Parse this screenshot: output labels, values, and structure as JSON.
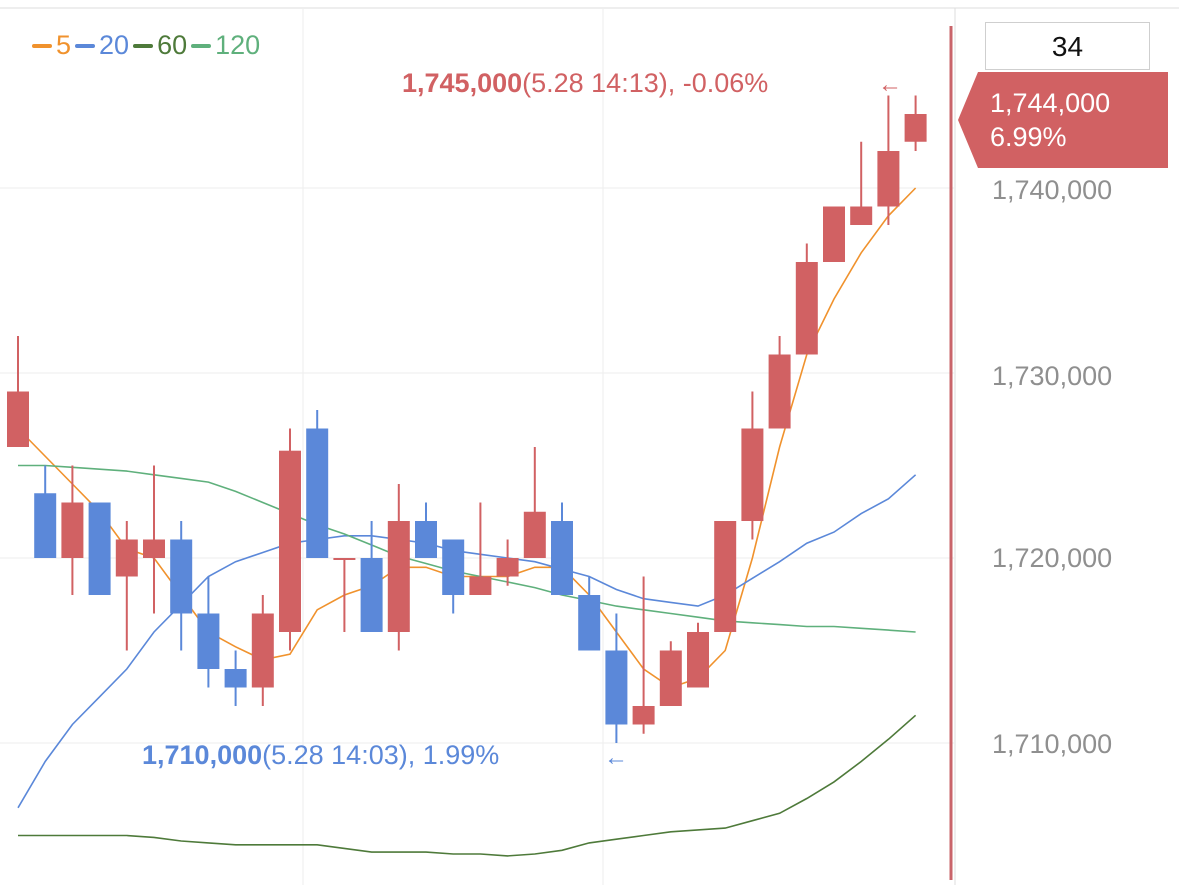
{
  "legend": [
    {
      "label": "5",
      "color": "#f0922d"
    },
    {
      "label": "20",
      "color": "#5b88d9"
    },
    {
      "label": "60",
      "color": "#4e7a3a"
    },
    {
      "label": "120",
      "color": "#5fb07c"
    }
  ],
  "top_box": "34",
  "current_price": {
    "price": "1,744,000",
    "change": "6.99%",
    "color": "#d16163"
  },
  "high_annotation": {
    "value": "1,745,000",
    "detail": "(5.28 14:13), -0.06%",
    "arrow": "←"
  },
  "low_annotation": {
    "value": "1,710,000",
    "detail": "(5.28 14:03), 1.99%",
    "arrow": "←"
  },
  "y_ticks": [
    "1,740,000",
    "1,730,000",
    "1,720,000",
    "1,710,000"
  ],
  "colors": {
    "up": "#d16163",
    "down": "#5b88d9",
    "grid": "#eeeeee",
    "axis_line": "#c9646a"
  },
  "chart_data": {
    "type": "candlestick",
    "y_ticks": [
      1740000,
      1730000,
      1720000,
      1710000
    ],
    "candles": [
      {
        "o": 1726000,
        "h": 1732000,
        "l": 1726000,
        "c": 1729000
      },
      {
        "o": 1723500,
        "h": 1725000,
        "l": 1720000,
        "c": 1720000
      },
      {
        "o": 1720000,
        "h": 1725000,
        "l": 1718000,
        "c": 1723000
      },
      {
        "o": 1723000,
        "h": 1723000,
        "l": 1718000,
        "c": 1718000
      },
      {
        "o": 1719000,
        "h": 1722000,
        "l": 1715000,
        "c": 1721000
      },
      {
        "o": 1720000,
        "h": 1725000,
        "l": 1717000,
        "c": 1721000
      },
      {
        "o": 1721000,
        "h": 1722000,
        "l": 1715000,
        "c": 1717000
      },
      {
        "o": 1717000,
        "h": 1719000,
        "l": 1713000,
        "c": 1714000
      },
      {
        "o": 1714000,
        "h": 1715000,
        "l": 1712000,
        "c": 1713000
      },
      {
        "o": 1713000,
        "h": 1718000,
        "l": 1712000,
        "c": 1717000
      },
      {
        "o": 1716000,
        "h": 1727000,
        "l": 1715000,
        "c": 1725800
      },
      {
        "o": 1727000,
        "h": 1728000,
        "l": 1720000,
        "c": 1720000
      },
      {
        "o": 1720000,
        "h": 1720000,
        "l": 1716000,
        "c": 1720000
      },
      {
        "o": 1720000,
        "h": 1722000,
        "l": 1716000,
        "c": 1716000
      },
      {
        "o": 1716000,
        "h": 1724000,
        "l": 1715000,
        "c": 1722000
      },
      {
        "o": 1722000,
        "h": 1723000,
        "l": 1720000,
        "c": 1720000
      },
      {
        "o": 1721000,
        "h": 1721000,
        "l": 1717000,
        "c": 1718000
      },
      {
        "o": 1718000,
        "h": 1723000,
        "l": 1718000,
        "c": 1719000
      },
      {
        "o": 1719000,
        "h": 1721000,
        "l": 1718500,
        "c": 1720000
      },
      {
        "o": 1720000,
        "h": 1726000,
        "l": 1720000,
        "c": 1722500
      },
      {
        "o": 1722000,
        "h": 1723000,
        "l": 1718000,
        "c": 1718000
      },
      {
        "o": 1718000,
        "h": 1719000,
        "l": 1715000,
        "c": 1715000
      },
      {
        "o": 1715000,
        "h": 1717000,
        "l": 1710000,
        "c": 1711000
      },
      {
        "o": 1711000,
        "h": 1719000,
        "l": 1710500,
        "c": 1712000
      },
      {
        "o": 1712000,
        "h": 1715500,
        "l": 1712000,
        "c": 1715000
      },
      {
        "o": 1713000,
        "h": 1716500,
        "l": 1713000,
        "c": 1716000
      },
      {
        "o": 1716000,
        "h": 1722000,
        "l": 1716000,
        "c": 1722000
      },
      {
        "o": 1722000,
        "h": 1729000,
        "l": 1721000,
        "c": 1727000
      },
      {
        "o": 1727000,
        "h": 1732000,
        "l": 1727000,
        "c": 1731000
      },
      {
        "o": 1731000,
        "h": 1737000,
        "l": 1731000,
        "c": 1736000
      },
      {
        "o": 1736000,
        "h": 1739000,
        "l": 1736000,
        "c": 1739000
      },
      {
        "o": 1738000,
        "h": 1742500,
        "l": 1738000,
        "c": 1739000
      },
      {
        "o": 1739000,
        "h": 1745000,
        "l": 1738000,
        "c": 1742000
      },
      {
        "o": 1742500,
        "h": 1745000,
        "l": 1742000,
        "c": 1744000
      }
    ],
    "ma": [
      {
        "name": "5",
        "values": [
          1727000,
          null,
          1724000,
          1722500,
          1720500,
          1720000,
          1718000,
          1716000,
          1715200,
          1714500,
          1714800,
          1717200,
          1718000,
          1718500,
          1719500,
          1719500,
          1719000,
          1719000,
          1719000,
          1719500,
          1719500,
          1718000,
          1716000,
          1714000,
          1713000,
          1713500,
          1715000,
          1720000,
          1726000,
          1731000,
          1734000,
          1736500,
          1738500,
          1740000
        ]
      },
      {
        "name": "20",
        "values": [
          1706500,
          1709000,
          1711000,
          1712500,
          1714000,
          1716000,
          1717500,
          1719000,
          1719800,
          1720300,
          1720800,
          1721000,
          1721200,
          1721200,
          1721000,
          1720800,
          1720400,
          1720200,
          1720000,
          1719800,
          1719400,
          1719000,
          1718300,
          1717800,
          1717600,
          1717400,
          1718000,
          1718900,
          1719800,
          1720800,
          1721400,
          1722400,
          1723200,
          1724500
        ]
      },
      {
        "name": "60",
        "values": [
          1705000,
          1705000,
          1705000,
          1705000,
          1705000,
          1704900,
          1704700,
          1704600,
          1704500,
          1704500,
          1704500,
          1704500,
          1704300,
          1704100,
          1704100,
          1704100,
          1704000,
          1704000,
          1703900,
          1704000,
          1704200,
          1704600,
          1704800,
          1705000,
          1705200,
          1705300,
          1705400,
          1705800,
          1706200,
          1707000,
          1707900,
          1709000,
          1710200,
          1711500
        ]
      },
      {
        "name": "120",
        "values": [
          1725000,
          1725000,
          1724900,
          1724800,
          1724700,
          1724500,
          1724300,
          1724100,
          1723600,
          1723000,
          1722400,
          1721800,
          1721300,
          1720700,
          1720100,
          1719700,
          1719300,
          1719000,
          1718700,
          1718400,
          1718000,
          1717700,
          1717400,
          1717200,
          1717000,
          1716800,
          1716600,
          1716500,
          1716400,
          1716300,
          1716300,
          1716200,
          1716100,
          1716000
        ]
      }
    ],
    "ylim": [
      1703000,
      1746000
    ]
  }
}
